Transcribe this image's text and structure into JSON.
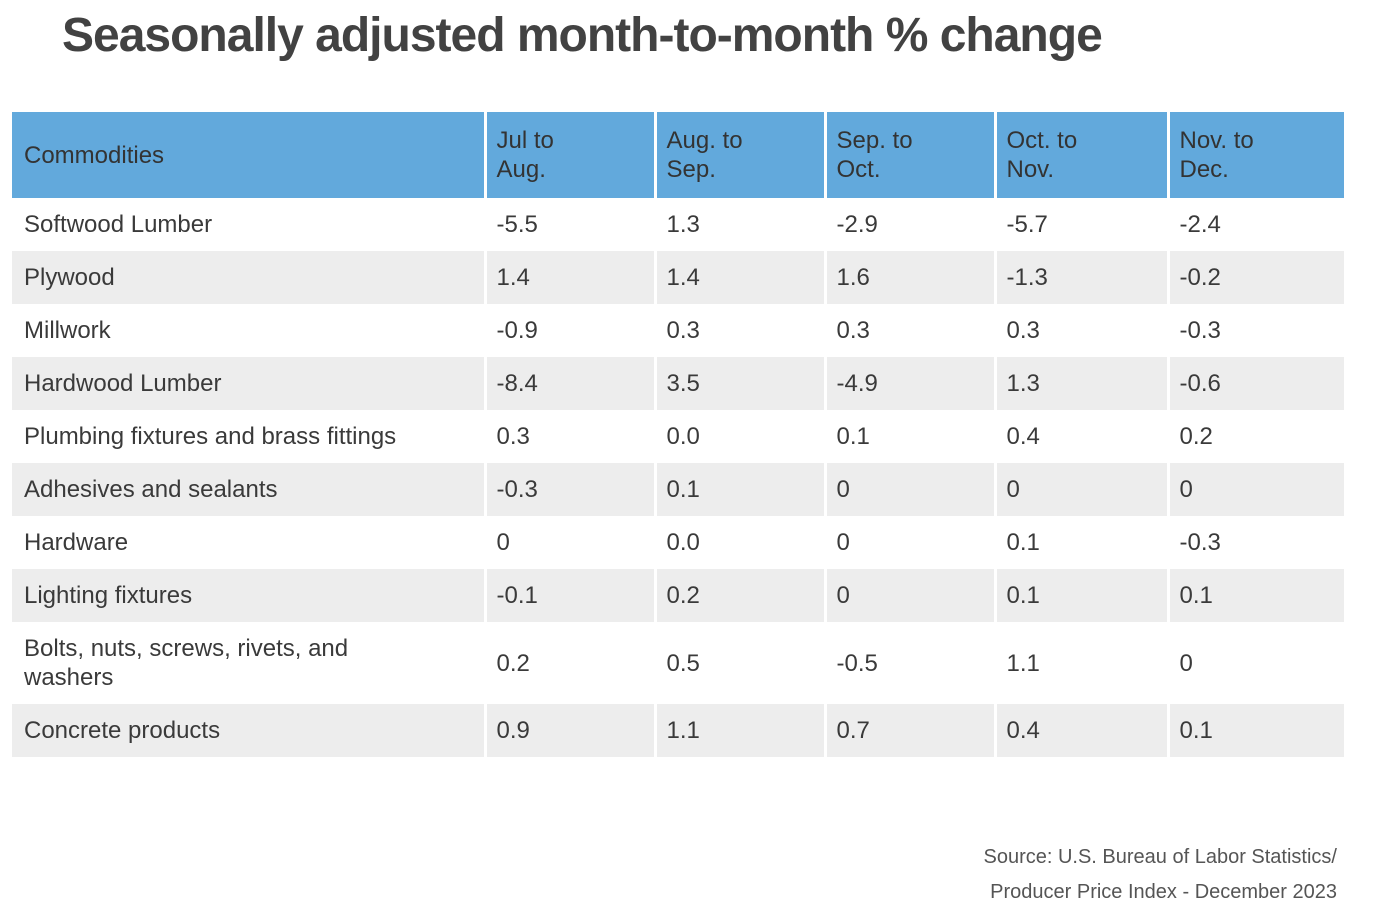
{
  "title": "Seasonally adjusted month-to-month % change",
  "source": "Source: U.S. Bureau of Labor Statistics/\nProducer Price Index - December 2023",
  "colors": {
    "header_bg": "#62a9dc",
    "stripe_bg": "#ededed",
    "cell_text": "#3a3a3a",
    "title_text": "#424242",
    "source_text": "#555555"
  },
  "table": {
    "columns": [
      "Commodities",
      "Jul to\nAug.",
      "Aug. to\nSep.",
      "Sep. to\nOct.",
      "Oct. to\nNov.",
      "Nov. to\nDec."
    ],
    "rows": [
      {
        "name": "Softwood Lumber",
        "values": [
          "-5.5",
          "1.3",
          "-2.9",
          "-5.7",
          "-2.4"
        ]
      },
      {
        "name": "Plywood",
        "values": [
          "1.4",
          "1.4",
          "1.6",
          "-1.3",
          "-0.2"
        ]
      },
      {
        "name": "Millwork",
        "values": [
          "-0.9",
          "0.3",
          "0.3",
          "0.3",
          "-0.3"
        ]
      },
      {
        "name": "Hardwood Lumber",
        "values": [
          "-8.4",
          "3.5",
          "-4.9",
          "1.3",
          "-0.6"
        ]
      },
      {
        "name": "Plumbing fixtures and brass fittings",
        "values": [
          "0.3",
          "0.0",
          "0.1",
          "0.4",
          "0.2"
        ]
      },
      {
        "name": "Adhesives and sealants",
        "values": [
          "-0.3",
          "0.1",
          "0",
          "0",
          "0"
        ]
      },
      {
        "name": "Hardware",
        "values": [
          "0",
          "0.0",
          "0",
          "0.1",
          "-0.3"
        ]
      },
      {
        "name": "Lighting fixtures",
        "values": [
          "-0.1",
          "0.2",
          "0",
          "0.1",
          "0.1"
        ]
      },
      {
        "name": "Bolts, nuts, screws, rivets, and washers",
        "values": [
          "0.2",
          "0.5",
          "-0.5",
          "1.1",
          "0"
        ]
      },
      {
        "name": "Concrete products",
        "values": [
          "0.9",
          "1.1",
          "0.7",
          "0.4",
          "0.1"
        ]
      }
    ]
  },
  "chart_data": {
    "type": "table",
    "title": "Seasonally adjusted month-to-month % change",
    "columns": [
      "Commodities",
      "Jul to Aug.",
      "Aug. to Sep.",
      "Sep. to Oct.",
      "Oct. to Nov.",
      "Nov. to Dec."
    ],
    "rows": [
      [
        "Softwood Lumber",
        -5.5,
        1.3,
        -2.9,
        -5.7,
        -2.4
      ],
      [
        "Plywood",
        1.4,
        1.4,
        1.6,
        -1.3,
        -0.2
      ],
      [
        "Millwork",
        -0.9,
        0.3,
        0.3,
        0.3,
        -0.3
      ],
      [
        "Hardwood Lumber",
        -8.4,
        3.5,
        -4.9,
        1.3,
        -0.6
      ],
      [
        "Plumbing fixtures and brass fittings",
        0.3,
        0.0,
        0.1,
        0.4,
        0.2
      ],
      [
        "Adhesives and sealants",
        -0.3,
        0.1,
        0,
        0,
        0
      ],
      [
        "Hardware",
        0,
        0.0,
        0,
        0.1,
        -0.3
      ],
      [
        "Lighting fixtures",
        -0.1,
        0.2,
        0,
        0.1,
        0.1
      ],
      [
        "Bolts, nuts, screws, rivets, and washers",
        0.2,
        0.5,
        -0.5,
        1.1,
        0
      ],
      [
        "Concrete products",
        0.9,
        1.1,
        0.7,
        0.4,
        0.1
      ]
    ],
    "source": "Source: U.S. Bureau of Labor Statistics/Producer Price Index - December 2023"
  }
}
